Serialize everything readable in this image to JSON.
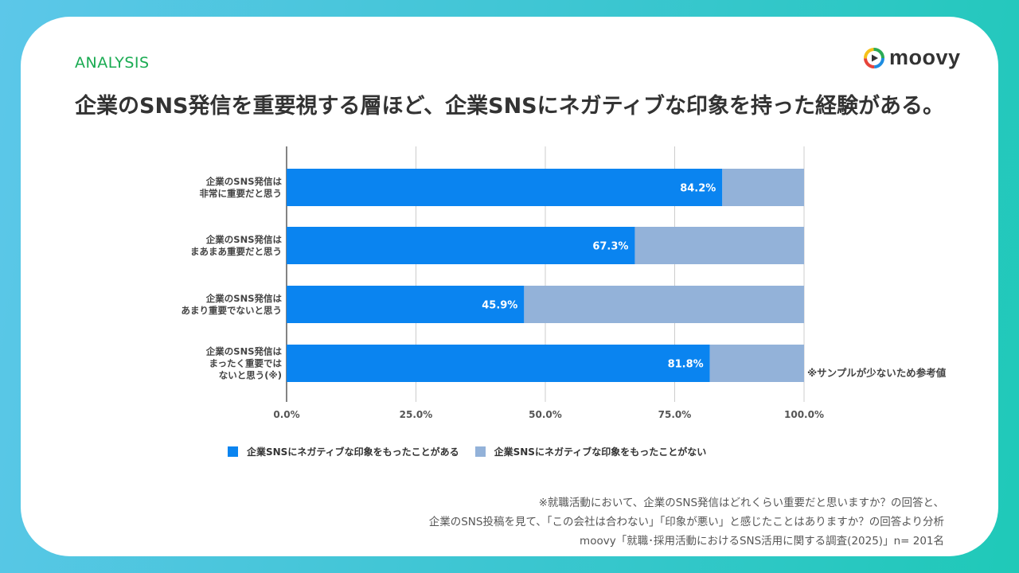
{
  "header": {
    "section_label": "ANALYSIS",
    "brand": "moovy",
    "headline": "企業のSNS発信を重要視する層ほど、企業SNSにネガティブな印象を持った経験がある。"
  },
  "colors": {
    "positive": "#0a84f0",
    "negative": "#93b2d9",
    "section_label": "#1aab52",
    "logo_ring": [
      "#f5c11a",
      "#e7443a",
      "#2aaa55",
      "#1d8ce0"
    ]
  },
  "chart_data": {
    "type": "bar",
    "orientation": "horizontal",
    "stacked": true,
    "categories": [
      [
        "企業のSNS発信は",
        "非常に重要だと思う"
      ],
      [
        "企業のSNS発信は",
        "まあまあ重要だと思う"
      ],
      [
        "企業のSNS発信は",
        "あまり重要でないと思う"
      ],
      [
        "企業のSNS発信は",
        "まったく重要では",
        "ないと思う(※)"
      ]
    ],
    "series": [
      {
        "name": "企業SNSにネガティブな印象をもったことがある",
        "values": [
          84.2,
          67.3,
          45.9,
          81.8
        ]
      },
      {
        "name": "企業SNSにネガティブな印象をもったことがない",
        "values": [
          15.8,
          32.7,
          54.1,
          18.2
        ]
      }
    ],
    "data_labels": [
      "84.2%",
      "67.3%",
      "45.9%",
      "81.8%"
    ],
    "x_ticks": [
      "0.0%",
      "25.0%",
      "50.0%",
      "75.0%",
      "100.0%"
    ],
    "xlim": [
      0,
      100
    ],
    "grid": true,
    "legend_position": "bottom",
    "annotation": "※サンプルが少ないため参考値"
  },
  "footnotes": [
    "※就職活動において、企業のSNS発信はどれくらい重要だと思いますか？の回答と、",
    "企業のSNS投稿を見て、「この会社は合わない」「印象が悪い」と感じたことはありますか？の回答より分析",
    "moovy「就職･採用活動におけるSNS活用に関する調査(2025)」n= 201名"
  ]
}
